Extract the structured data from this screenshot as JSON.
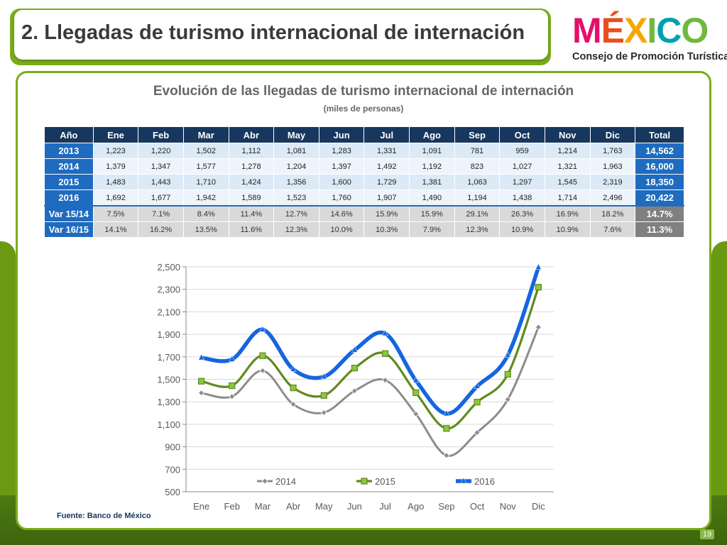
{
  "header": {
    "title": "2. Llegadas de turismo internacional de internación",
    "logo_text": "MÉXICO",
    "logo_subtitle": "Consejo de Promoción Turística"
  },
  "panel": {
    "title": "Evolución de las llegadas de turismo internacional de internación",
    "subtitle": "(miles de personas)"
  },
  "table": {
    "headers": [
      "Año",
      "Ene",
      "Feb",
      "Mar",
      "Abr",
      "May",
      "Jun",
      "Jul",
      "Ago",
      "Sep",
      "Oct",
      "Nov",
      "Dic",
      "Total"
    ],
    "rows": [
      {
        "label": "2013",
        "values": [
          "1,223",
          "1,220",
          "1,502",
          "1,112",
          "1,081",
          "1,283",
          "1,331",
          "1,091",
          "781",
          "959",
          "1,214",
          "1,763"
        ],
        "total": "14,562"
      },
      {
        "label": "2014",
        "values": [
          "1,379",
          "1,347",
          "1,577",
          "1,278",
          "1,204",
          "1,397",
          "1,492",
          "1,192",
          "823",
          "1,027",
          "1,321",
          "1,963"
        ],
        "total": "16,000"
      },
      {
        "label": "2015",
        "values": [
          "1,483",
          "1,443",
          "1,710",
          "1,424",
          "1,356",
          "1,600",
          "1,729",
          "1,381",
          "1,063",
          "1,297",
          "1,545",
          "2,319"
        ],
        "total": "18,350"
      },
      {
        "label": "2016",
        "values": [
          "1,692",
          "1,677",
          "1,942",
          "1,589",
          "1,523",
          "1,760",
          "1,907",
          "1,490",
          "1,194",
          "1,438",
          "1,714",
          "2,496"
        ],
        "total": "20,422"
      }
    ],
    "var_rows": [
      {
        "label": "Var 15/14",
        "values": [
          "7.5%",
          "7.1%",
          "8.4%",
          "11.4%",
          "12.7%",
          "14.6%",
          "15.9%",
          "15.9%",
          "29.1%",
          "26.3%",
          "16.9%",
          "18.2%"
        ],
        "total": "14.7%"
      },
      {
        "label": "Var 16/15",
        "values": [
          "14.1%",
          "16.2%",
          "13.5%",
          "11.6%",
          "12.3%",
          "10.0%",
          "10.3%",
          "7.9%",
          "12.3%",
          "10.9%",
          "10.9%",
          "7.6%"
        ],
        "total": "11.3%"
      }
    ]
  },
  "chart_data": {
    "type": "line",
    "categories": [
      "Ene",
      "Feb",
      "Mar",
      "Abr",
      "May",
      "Jun",
      "Jul",
      "Ago",
      "Sep",
      "Oct",
      "Nov",
      "Dic"
    ],
    "y_ticks": [
      "2,500",
      "2,300",
      "2,100",
      "1,900",
      "1,700",
      "1,500",
      "1,300",
      "1,100",
      "900",
      "700",
      "500"
    ],
    "ylim": [
      500,
      2500
    ],
    "grid": true,
    "legend_position": "bottom-inside",
    "series": [
      {
        "name": "2014",
        "color": "#8c8c8c",
        "marker": "diamond",
        "values": [
          1379,
          1347,
          1577,
          1278,
          1204,
          1397,
          1492,
          1192,
          823,
          1027,
          1321,
          1963
        ]
      },
      {
        "name": "2015",
        "color": "#5f8a1e",
        "marker": "square",
        "values": [
          1483,
          1443,
          1710,
          1424,
          1356,
          1600,
          1729,
          1381,
          1063,
          1297,
          1545,
          2319
        ]
      },
      {
        "name": "2016",
        "color": "#1565e0",
        "marker": "triangle",
        "values": [
          1692,
          1677,
          1942,
          1589,
          1523,
          1760,
          1907,
          1490,
          1194,
          1438,
          1714,
          2496
        ]
      }
    ]
  },
  "footer": {
    "source": "Fuente: Banco de México",
    "page_number": "19"
  },
  "colors": {
    "brand_green": "#7aac1a",
    "header_navy": "#17375e",
    "year_blue": "#1f6bbf"
  }
}
